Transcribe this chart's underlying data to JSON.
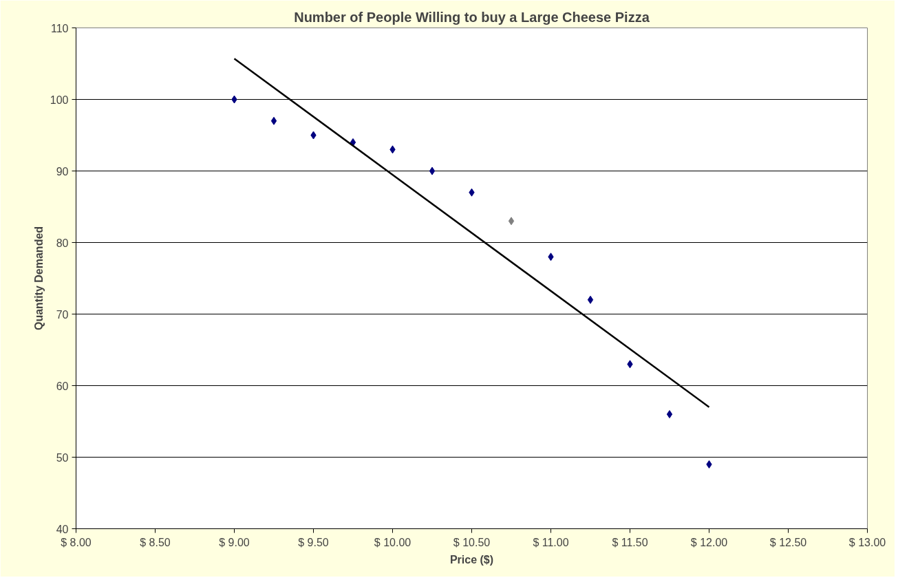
{
  "chart_data": {
    "type": "scatter",
    "title": "Number of People Willing to buy a Large Cheese Pizza",
    "xlabel": "Price ($)",
    "ylabel": "Quantity Demanded",
    "xlim": [
      8,
      13
    ],
    "xticks": [
      {
        "value": 8,
        "label": "$ 8.00"
      },
      {
        "value": 8.5,
        "label": "$ 8.50"
      },
      {
        "value": 9,
        "label": "$ 9.00"
      },
      {
        "value": 9.5,
        "label": "$ 9.50"
      },
      {
        "value": 10,
        "label": "$ 10.00"
      },
      {
        "value": 10.5,
        "label": "$ 10.50"
      },
      {
        "value": 11,
        "label": "$ 11.00"
      },
      {
        "value": 11.5,
        "label": "$ 11.50"
      },
      {
        "value": 12,
        "label": "$ 12.00"
      },
      {
        "value": 12.5,
        "label": "$ 12.50"
      },
      {
        "value": 13,
        "label": "$ 13.00"
      }
    ],
    "ylim": [
      40,
      110
    ],
    "yticks": [
      40,
      50,
      60,
      70,
      80,
      90,
      100,
      110
    ],
    "grid": "y",
    "series": [
      {
        "marker": "diamond",
        "x": [
          9,
          9.25,
          9.5,
          9.75,
          10,
          10.25,
          10.5,
          10.75,
          11,
          11.25,
          11.5,
          11.75,
          12
        ],
        "values": [
          100,
          97,
          95,
          94,
          93,
          90,
          87,
          83,
          78,
          72,
          63,
          56,
          49
        ],
        "colors": [
          "#000080",
          "#000080",
          "#000080",
          "#000080",
          "#000080",
          "#000080",
          "#000080",
          "#808080",
          "#000080",
          "#000080",
          "#000080",
          "#000080",
          "#000080"
        ]
      },
      {
        "type": "line",
        "x": [
          9,
          12
        ],
        "values": [
          105.7,
          57
        ],
        "color": "#000000"
      }
    ]
  }
}
